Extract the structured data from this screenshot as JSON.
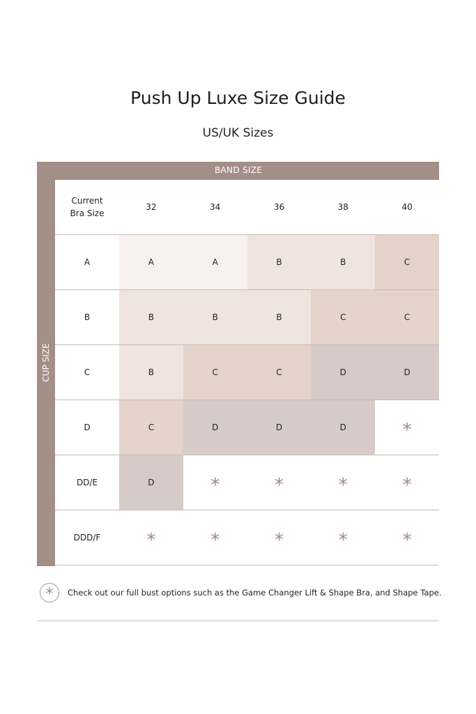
{
  "title": "Push Up Luxe Size Guide",
  "subtitle": "US/UK Sizes",
  "band_label": "BAND SIZE",
  "cup_label": "CUP SIZE",
  "header": {
    "label": "Current Bra Size",
    "bands": [
      "32",
      "34",
      "36",
      "38",
      "40"
    ]
  },
  "colors": {
    "frame": "#a38f87",
    "A": "#f8f1ef",
    "B": "#efe4de",
    "C": "#e4d3ca",
    "D": "#d6cbc9",
    "*": "#ffffff",
    "star": "#9d8781"
  },
  "rows": [
    {
      "cup": "A",
      "values": [
        "A",
        "A",
        "B",
        "B",
        "C"
      ]
    },
    {
      "cup": "B",
      "values": [
        "B",
        "B",
        "B",
        "C",
        "C"
      ]
    },
    {
      "cup": "C",
      "values": [
        "B",
        "C",
        "C",
        "D",
        "D"
      ]
    },
    {
      "cup": "D",
      "values": [
        "C",
        "D",
        "D",
        "D",
        "*"
      ]
    },
    {
      "cup": "DD/E",
      "values": [
        "D",
        "*",
        "*",
        "*",
        "*"
      ]
    },
    {
      "cup": "DDD/F",
      "values": [
        "*",
        "*",
        "*",
        "*",
        "*"
      ]
    }
  ],
  "note": {
    "icon": "asterisk-icon",
    "symbol": "*",
    "text": "Check out our full bust options such as the Game Changer Lift & Shape Bra, and Shape Tape."
  }
}
